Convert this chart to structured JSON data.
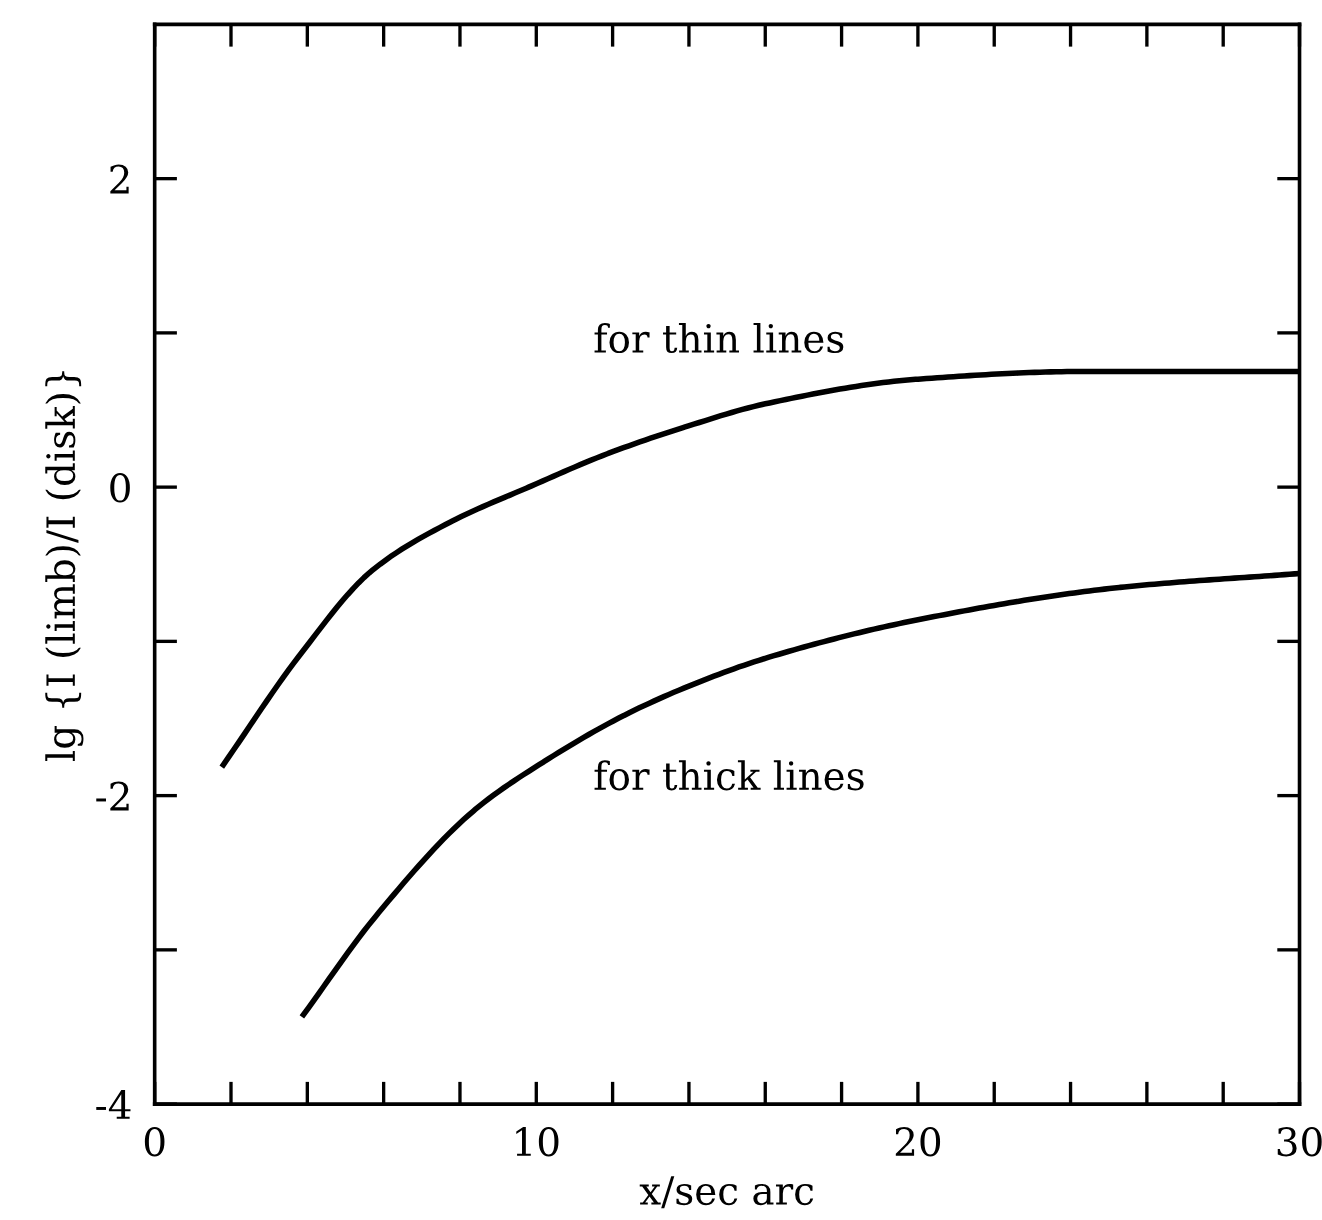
{
  "chart_data": {
    "type": "line",
    "xlabel": "x/sec arc",
    "ylabel": "lg {I (limb)/I (disk)}",
    "xlim": [
      0,
      30
    ],
    "ylim": [
      -4,
      3
    ],
    "xticks": [
      0,
      {
        "value": 2,
        "label": null
      },
      {
        "value": 4,
        "label": null
      },
      {
        "value": 6,
        "label": null
      },
      {
        "value": 8,
        "label": null
      },
      10,
      {
        "value": 12,
        "label": null
      },
      {
        "value": 14,
        "label": null
      },
      {
        "value": 16,
        "label": null
      },
      {
        "value": 18,
        "label": null
      },
      20,
      {
        "value": 22,
        "label": null
      },
      {
        "value": 24,
        "label": null
      },
      {
        "value": 26,
        "label": null
      },
      {
        "value": 28,
        "label": null
      },
      30
    ],
    "yticks": [
      -4,
      {
        "value": -3,
        "label": null
      },
      -2,
      {
        "value": -1,
        "label": null
      },
      0,
      {
        "value": 1,
        "label": null
      },
      2
    ],
    "grid": false,
    "marker": "none",
    "line_style": "solid",
    "series": [
      {
        "color": "#000000",
        "x": [
          1.8,
          3.8,
          5.7,
          7.8,
          9.8,
          11.9,
          13.9,
          16.0,
          20.0,
          24.4,
          30.0
        ],
        "values": [
          -1.8,
          -1.09,
          -0.54,
          -0.22,
          0.0,
          0.22,
          0.39,
          0.54,
          0.7,
          0.75,
          0.75
        ]
      },
      {
        "color": "#000000",
        "x": [
          3.9,
          5.8,
          8.4,
          10.2,
          12.3,
          13.9,
          16.0,
          20.0,
          25.3,
          30.0
        ],
        "values": [
          -3.42,
          -2.78,
          -2.09,
          -1.78,
          -1.48,
          -1.3,
          -1.11,
          -0.86,
          -0.65,
          -0.56
        ]
      }
    ],
    "annotations": [
      "for thin lines",
      "for thick lines"
    ]
  }
}
